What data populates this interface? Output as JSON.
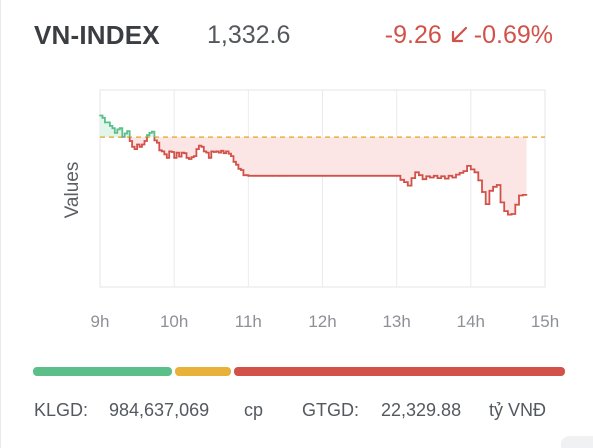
{
  "header": {
    "name": "VN-INDEX",
    "price": "1,332.6",
    "change": "-9.26",
    "change_pct": "-0.69%"
  },
  "colors": {
    "up": "#5cbf8a",
    "down": "#d2524a",
    "reference": "#e8b23a",
    "text": "#545960"
  },
  "chart_data": {
    "type": "line",
    "ylabel": "Values",
    "xlabel": "",
    "x_ticks": [
      "9h",
      "10h",
      "11h",
      "12h",
      "13h",
      "14h",
      "15h"
    ],
    "reference_value": 1341.86,
    "ylim": [
      1316,
      1350
    ],
    "grid": true,
    "series": [
      {
        "x": [
          "9:00",
          "9:02",
          "9:04",
          "9:06",
          "9:08",
          "9:10",
          "9:12",
          "9:14",
          "9:16",
          "9:18",
          "9:20",
          "9:22",
          "9:24",
          "9:26",
          "9:28",
          "9:30",
          "9:32",
          "9:34",
          "9:36",
          "9:38",
          "9:40",
          "9:42",
          "9:44",
          "9:46",
          "9:48",
          "9:50",
          "9:52",
          "9:54",
          "9:56",
          "9:58",
          "10:00",
          "10:02",
          "10:04",
          "10:06",
          "10:08",
          "10:10",
          "10:12",
          "10:14",
          "10:16",
          "10:18",
          "10:20",
          "10:22",
          "10:24",
          "10:26",
          "10:28",
          "10:30",
          "10:32",
          "10:34",
          "10:36",
          "10:38",
          "10:40",
          "10:42",
          "10:44",
          "10:46",
          "10:48",
          "10:50",
          "10:52",
          "10:54",
          "10:56",
          "10:58",
          "11:00",
          "11:05",
          "11:10",
          "11:15",
          "11:20",
          "11:25",
          "11:30",
          "13:00",
          "13:03",
          "13:06",
          "13:09",
          "13:12",
          "13:15",
          "13:18",
          "13:21",
          "13:24",
          "13:27",
          "13:30",
          "13:33",
          "13:36",
          "13:39",
          "13:42",
          "13:45",
          "13:48",
          "13:51",
          "13:54",
          "13:57",
          "14:00",
          "14:03",
          "14:06",
          "14:09",
          "14:12",
          "14:15",
          "14:18",
          "14:21",
          "14:24",
          "14:27",
          "14:30",
          "14:33",
          "14:36",
          "14:39",
          "14:42",
          "14:45"
        ],
        "y": [
          1345.6,
          1345.2,
          1344.4,
          1344.4,
          1343.8,
          1343.4,
          1342.6,
          1343.2,
          1343.4,
          1341.9,
          1342.5,
          1342.9,
          1341.2,
          1340.2,
          1339.8,
          1340.6,
          1340.2,
          1340.6,
          1341.2,
          1342.2,
          1342.6,
          1342.8,
          1341.3,
          1340.9,
          1339.6,
          1339.4,
          1338.9,
          1338.3,
          1339.4,
          1339.3,
          1338.3,
          1339.2,
          1338.5,
          1339.2,
          1339.1,
          1338.3,
          1338.1,
          1338.4,
          1338.6,
          1339.8,
          1340.4,
          1340.2,
          1339.4,
          1339.2,
          1338.3,
          1339.4,
          1339.3,
          1339.4,
          1339.2,
          1339.5,
          1339.1,
          1339.4,
          1339.0,
          1338.6,
          1337.6,
          1337.1,
          1336.4,
          1336.2,
          1335.3,
          1335.3,
          1335.2,
          1335.2,
          1335.2,
          1335.2,
          1335.2,
          1335.2,
          1335.2,
          1335.2,
          1334.5,
          1334.1,
          1333.5,
          1334.8,
          1335.8,
          1335.3,
          1334.6,
          1335.1,
          1334.9,
          1335.2,
          1334.8,
          1335.1,
          1334.7,
          1335.2,
          1334.9,
          1335.4,
          1335.7,
          1336.0,
          1336.9,
          1336.3,
          1335.8,
          1334.4,
          1332.4,
          1330.3,
          1332.6,
          1333.3,
          1333.6,
          1330.6,
          1329.1,
          1328.5,
          1328.6,
          1330.2,
          1331.8,
          1331.9,
          1331.9
        ]
      }
    ]
  },
  "breadth_bar": {
    "up_fraction": 0.265,
    "unchanged_fraction": 0.105,
    "down_fraction": 0.63
  },
  "footer": {
    "klgd_label": "KLGD:",
    "klgd_value": "984,637,069",
    "klgd_unit": "cp",
    "gtgd_label": "GTGD:",
    "gtgd_value": "22,329.88",
    "gtgd_unit": "tỷ VNĐ"
  }
}
